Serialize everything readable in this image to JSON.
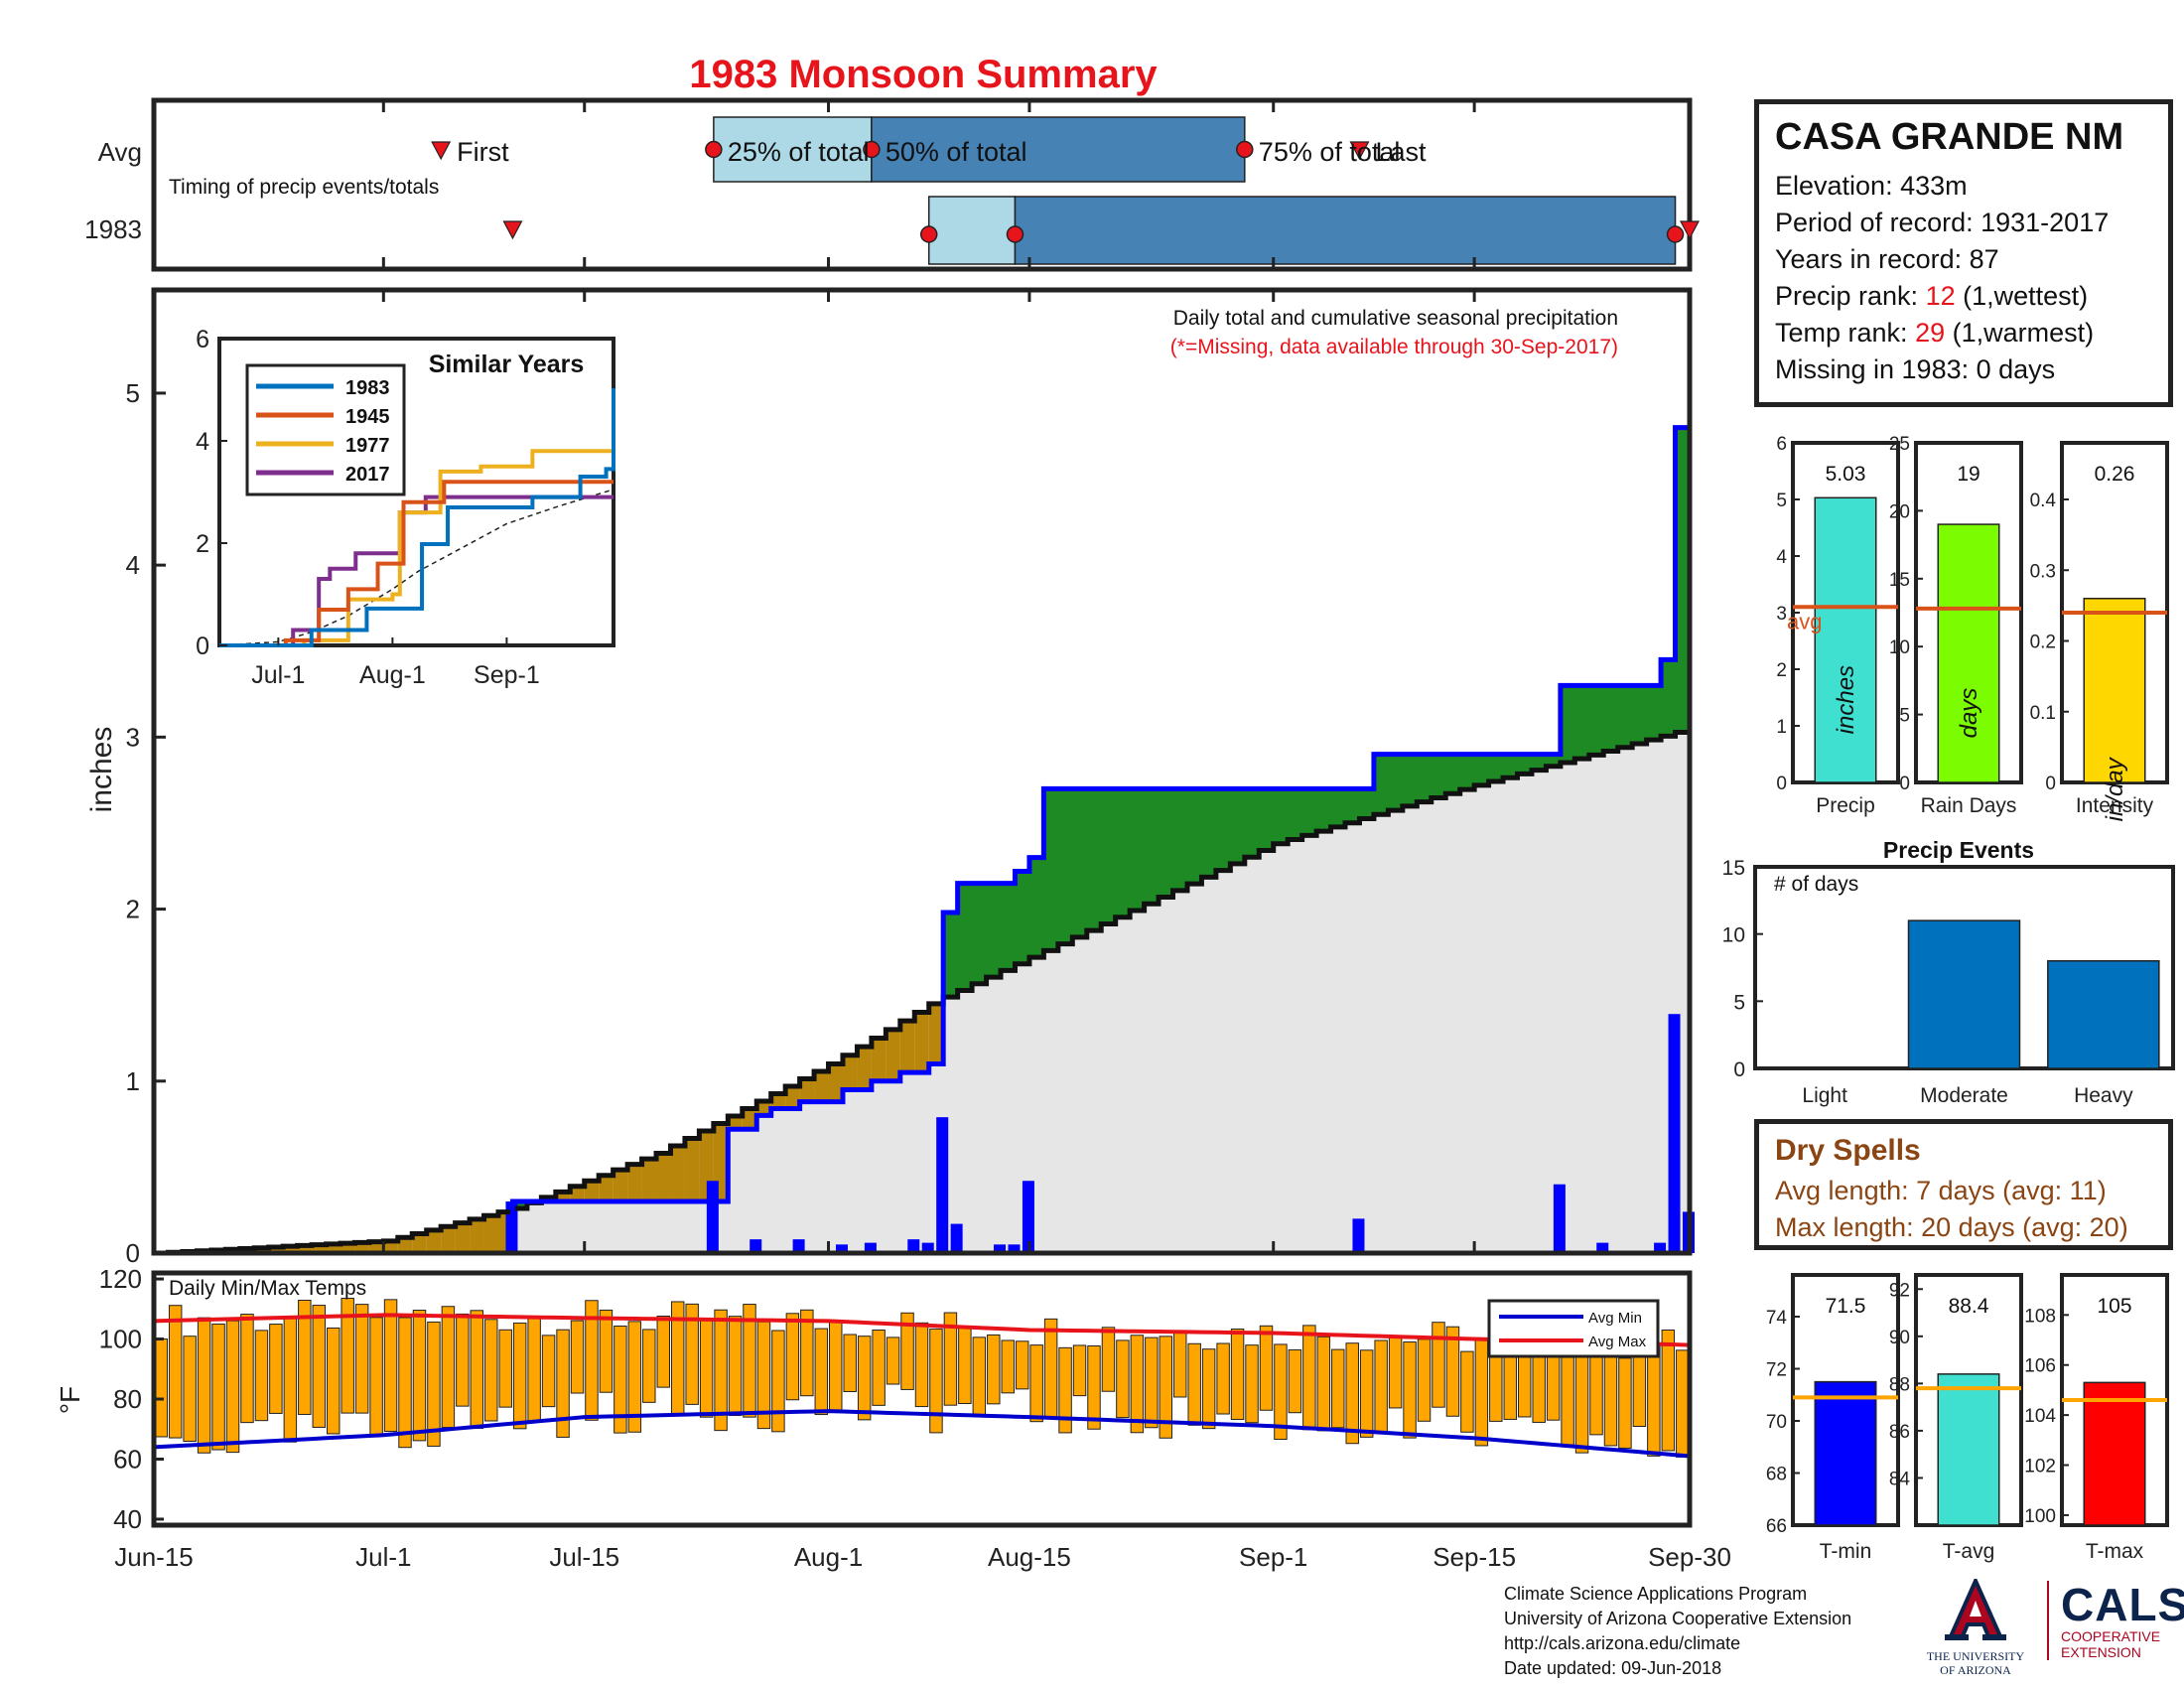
{
  "title": "1983 Monsoon Summary",
  "colors": {
    "title_red": "#e8141c",
    "precip_blue": "#0000ff",
    "above_avg_green": "#1e8a24",
    "below_avg_brown": "#b8860b",
    "avg_fill_gray": "#e6e6e6",
    "avg_box_light": "#add8e6",
    "avg_box_dark": "#4682b4",
    "marker_red": "#e8141c",
    "temp_bar_orange": "#ffa500",
    "avg_min_blue": "#0000cd",
    "avg_max_red": "#e8141c",
    "avg_line_orange": "#d95319",
    "dry_brown": "#8b4513"
  },
  "station": {
    "name": "CASA GRANDE NM",
    "elevation": "Elevation: 433m",
    "period": "Period of record: 1931-2017",
    "years": "Years in record: 87",
    "precip_rank_label": "Precip rank: ",
    "precip_rank": "12",
    "precip_rank_note": " (1,wettest)",
    "temp_rank_label": "Temp rank: ",
    "temp_rank": "29",
    "temp_rank_note": " (1,warmest)",
    "missing": "Missing in 1983: 0 days"
  },
  "timing": {
    "row_avg": "Avg",
    "row_year": "1983",
    "subtitle": "Timing of precip events/totals",
    "labels": {
      "first": "First",
      "p25": "25% of total",
      "p50": "50% of total",
      "p75": "75% of total",
      "last": "Last"
    },
    "avg": {
      "first": "Jul-5",
      "p25": "Jul-24",
      "p50": "Aug-4",
      "p75": "Aug-30",
      "last": "Sep-7"
    },
    "year": {
      "first": "Jul-10",
      "p25": "Aug-8",
      "p50": "Aug-14",
      "p75": "Sep-29",
      "last": "Sep-30"
    }
  },
  "main_chart": {
    "note": "Daily total and cumulative seasonal precipitation",
    "missing_note": "(*=Missing, data available through 30-Sep-2017)",
    "ylabel": "inches",
    "yticks": [
      "0",
      "1",
      "2",
      "3",
      "4",
      "5"
    ],
    "xticks": [
      "Jun-15",
      "Jul-1",
      "Jul-15",
      "Aug-1",
      "Aug-15",
      "Sep-1",
      "Sep-15",
      "Sep-30"
    ]
  },
  "inset": {
    "title": "Similar Years",
    "yticks": [
      "0",
      "2",
      "4",
      "6"
    ],
    "xticks": [
      "Jul-1",
      "Aug-1",
      "Sep-1"
    ],
    "legend": [
      "1983",
      "1945",
      "1977",
      "2017"
    ]
  },
  "temps": {
    "label": "Daily Min/Max Temps",
    "ylabel": "°F",
    "yticks": [
      "40",
      "60",
      "80",
      "100",
      "120"
    ],
    "legend_min": "Avg Min",
    "legend_max": "Avg Max"
  },
  "summary_bars": [
    {
      "label": "Precip",
      "unit": "inches",
      "value": 5.03,
      "value_text": "5.03",
      "avg": 3.1,
      "avg_text": "avg",
      "yticks": [
        "0",
        "1",
        "2",
        "3",
        "4",
        "5",
        "6"
      ],
      "color": "#40e0d0"
    },
    {
      "label": "Rain Days",
      "unit": "days",
      "value": 19,
      "value_text": "19",
      "avg": 12.8,
      "yticks": [
        "0",
        "5",
        "10",
        "15",
        "20",
        "25"
      ],
      "color": "#7cfc00"
    },
    {
      "label": "Intensity",
      "unit": "in/day",
      "value": 0.26,
      "value_text": "0.26",
      "avg": 0.24,
      "yticks": [
        "0",
        "0.1",
        "0.2",
        "0.3",
        "0.4"
      ],
      "color": "#ffd700"
    }
  ],
  "precip_events": {
    "title": "Precip Events",
    "ylabel": "# of days",
    "categories": [
      "Light",
      "Moderate",
      "Heavy"
    ],
    "values": [
      0,
      11,
      8
    ],
    "yticks": [
      "0",
      "5",
      "10",
      "15"
    ]
  },
  "dry_spells": {
    "title": "Dry Spells",
    "avg_length": "Avg length: 7 days (avg: 11)",
    "max_length": "Max length: 20 days (avg: 20)"
  },
  "temp_bars": [
    {
      "label": "T-min",
      "value": 71.5,
      "value_text": "71.5",
      "avg": 70.9,
      "yticks": [
        "66",
        "68",
        "70",
        "72",
        "74"
      ],
      "color": "#0000ff"
    },
    {
      "label": "T-avg",
      "value": 88.4,
      "value_text": "88.4",
      "avg": 87.8,
      "yticks": [
        "84",
        "86",
        "88",
        "90",
        "92"
      ],
      "color": "#40e0d0"
    },
    {
      "label": "T-max",
      "value": 105.3,
      "value_text": "105",
      "avg": 104.6,
      "yticks": [
        "100",
        "102",
        "104",
        "106",
        "108"
      ],
      "color": "#ff0000"
    }
  ],
  "credits": {
    "line1": "Climate Science Applications Program",
    "line2": "University of Arizona Cooperative Extension",
    "line3": "http://cals.arizona.edu/climate",
    "line4": " Date updated: 09-Jun-2018"
  },
  "logos": {
    "ua_caption1": "THE UNIVERSITY",
    "ua_caption2": "OF ARIZONA",
    "cals": "CALS",
    "cals_sub1": "COOPERATIVE",
    "cals_sub2": "EXTENSION"
  },
  "chart_data": [
    {
      "type": "line",
      "title": "Daily total and cumulative seasonal precipitation",
      "ylabel": "inches",
      "ylim": [
        0,
        5.6
      ],
      "x_range": [
        "Jun-15",
        "Sep-30"
      ],
      "series": [
        {
          "name": "1983 cumulative",
          "x": [
            "Jun-15",
            "Jul-10",
            "Jul-11",
            "Jul-24",
            "Jul-25",
            "Jul-27",
            "Jul-28",
            "Jul-30",
            "Aug-2",
            "Aug-4",
            "Aug-6",
            "Aug-8",
            "Aug-9",
            "Aug-10",
            "Aug-14",
            "Aug-15",
            "Aug-16",
            "Sep-7",
            "Sep-8",
            "Sep-20",
            "Sep-21",
            "Sep-28",
            "Sep-29",
            "Sep-30"
          ],
          "y": [
            0,
            0.3,
            0.3,
            0.3,
            0.72,
            0.8,
            0.84,
            0.88,
            0.95,
            1.0,
            1.05,
            1.1,
            1.98,
            2.15,
            2.22,
            2.3,
            2.7,
            2.7,
            2.9,
            2.9,
            3.3,
            3.45,
            4.8,
            5.03
          ]
        },
        {
          "name": "Avg cumulative",
          "x": [
            "Jun-15",
            "Jul-1",
            "Jul-10",
            "Jul-20",
            "Aug-1",
            "Aug-8",
            "Aug-15",
            "Sep-1",
            "Sep-15",
            "Sep-30"
          ],
          "y": [
            0,
            0.07,
            0.26,
            0.58,
            1.1,
            1.45,
            1.72,
            2.38,
            2.72,
            3.05
          ]
        },
        {
          "name": "Daily precip",
          "x": [
            "Jul-10",
            "Jul-24",
            "Jul-27",
            "Jul-30",
            "Aug-2",
            "Aug-4",
            "Aug-7",
            "Aug-8",
            "Aug-9",
            "Aug-10",
            "Aug-13",
            "Aug-14",
            "Aug-15",
            "Sep-7",
            "Sep-21",
            "Sep-24",
            "Sep-28",
            "Sep-29",
            "Sep-30"
          ],
          "y": [
            0.3,
            0.42,
            0.08,
            0.08,
            0.05,
            0.06,
            0.08,
            0.06,
            0.79,
            0.17,
            0.05,
            0.05,
            0.42,
            0.2,
            0.4,
            0.06,
            0.06,
            1.39,
            0.24
          ]
        }
      ]
    },
    {
      "type": "line",
      "title": "Similar Years",
      "ylim": [
        0,
        6
      ],
      "series": [
        {
          "name": "1983",
          "x": [
            "Jun-15",
            "Jul-10",
            "Jul-25",
            "Aug-9",
            "Aug-16",
            "Sep-8",
            "Sep-21",
            "Sep-28",
            "Sep-30"
          ],
          "y": [
            0,
            0.3,
            0.72,
            1.98,
            2.7,
            2.9,
            3.3,
            3.45,
            5.03
          ]
        },
        {
          "name": "1945",
          "x": [
            "Jun-15",
            "Jul-3",
            "Jul-12",
            "Jul-20",
            "Jul-28",
            "Aug-4",
            "Aug-15",
            "Aug-22",
            "Sep-30"
          ],
          "y": [
            0,
            0.1,
            0.7,
            1.1,
            1.6,
            2.8,
            3.2,
            3.2,
            3.2
          ]
        },
        {
          "name": "1977",
          "x": [
            "Jun-15",
            "Jul-8",
            "Jul-20",
            "Aug-1",
            "Aug-3",
            "Aug-14",
            "Aug-25",
            "Sep-8",
            "Sep-30"
          ],
          "y": [
            0,
            0.1,
            0.9,
            1.0,
            2.6,
            3.4,
            3.5,
            3.8,
            3.8
          ]
        },
        {
          "name": "2017",
          "x": [
            "Jun-15",
            "Jul-5",
            "Jul-12",
            "Jul-15",
            "Jul-22",
            "Aug-3",
            "Aug-10",
            "Sep-30"
          ],
          "y": [
            0,
            0.3,
            1.3,
            1.5,
            1.8,
            2.6,
            2.9,
            2.9
          ]
        }
      ]
    },
    {
      "type": "bar",
      "title": "Daily Min/Max Temps",
      "ylabel": "°F",
      "ylim": [
        40,
        120
      ],
      "note": "Orange bars span daily min to max; lines show Avg Min (approx. 64→61) and Avg Max (approx. 106→98) from Jun-15 to Sep-30",
      "series": [
        {
          "name": "Avg Min",
          "x": [
            "Jun-15",
            "Jul-1",
            "Jul-15",
            "Aug-1",
            "Aug-15",
            "Sep-1",
            "Sep-15",
            "Sep-30"
          ],
          "y": [
            64,
            68,
            74,
            76,
            74,
            71,
            67,
            61
          ]
        },
        {
          "name": "Avg Max",
          "x": [
            "Jun-15",
            "Jul-1",
            "Jul-15",
            "Aug-1",
            "Aug-15",
            "Sep-1",
            "Sep-15",
            "Sep-30"
          ],
          "y": [
            106,
            108,
            107,
            106,
            103,
            102,
            100,
            98
          ]
        }
      ]
    },
    {
      "type": "bar",
      "title": "Precip Events",
      "categories": [
        "Light",
        "Moderate",
        "Heavy"
      ],
      "values": [
        0,
        11,
        8
      ],
      "ylim": [
        0,
        15
      ]
    }
  ]
}
